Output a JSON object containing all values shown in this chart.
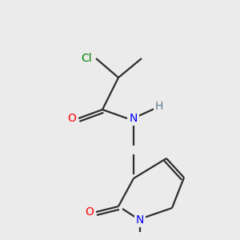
{
  "background_color": "#ebebeb",
  "bond_color": "#2d2d2d",
  "atom_colors": {
    "Cl": "#008000",
    "O": "#ff0000",
    "N": "#0000ff",
    "H": "#5f7f8f",
    "C": "#2d2d2d"
  },
  "figsize": [
    3.0,
    3.0
  ],
  "dpi": 100,
  "bond_lw": 1.6,
  "font_size": 10
}
